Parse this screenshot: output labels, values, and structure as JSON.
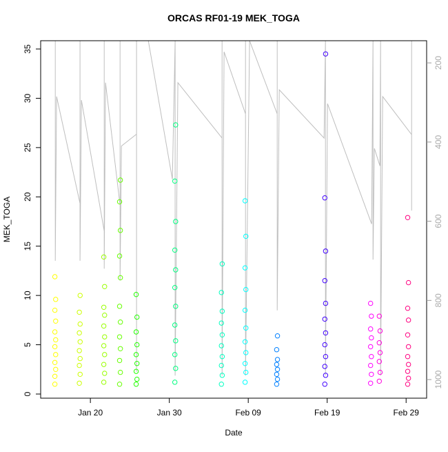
{
  "chart_data": {
    "type": "scatter",
    "title": "ORCAS RF01-19 MEK_TOGA",
    "x_label": "Date",
    "y_label": "MEK_TOGA",
    "xlim": [
      13.7,
      62.6
    ],
    "ylim": [
      -0.42,
      35.84
    ],
    "y2lim": [
      1047,
      144
    ],
    "xticks": [
      {
        "value": 20,
        "label": "Jan 20"
      },
      {
        "value": 30,
        "label": "Jan 30"
      },
      {
        "value": 40,
        "label": "Feb 09"
      },
      {
        "value": 50,
        "label": "Feb 19"
      },
      {
        "value": 60,
        "label": "Feb 29"
      }
    ],
    "yticks": [
      0,
      5,
      10,
      15,
      20,
      25,
      30,
      35
    ],
    "y2ticks": [
      200,
      400,
      600,
      800,
      1000
    ],
    "series": [
      {
        "color": "#FFFF00",
        "x": [
          15.5,
          15.5,
          15.6,
          15.5,
          15.6,
          15.5,
          15.6,
          15.5,
          15.6,
          15.5,
          15.6,
          15.5
        ],
        "values": [
          1,
          1.8,
          2.5,
          3.2,
          4,
          4.8,
          5.5,
          6.3,
          7.4,
          8.5,
          9.6,
          11.9
        ]
      },
      {
        "color": "#CCFF00",
        "x": [
          18.6,
          18.7,
          18.6,
          18.7,
          18.6,
          18.7,
          18.6,
          18.7,
          18.6,
          18.7
        ],
        "values": [
          1.1,
          2,
          2.9,
          3.6,
          4.4,
          5.3,
          6.2,
          7.1,
          8.3,
          10
        ]
      },
      {
        "color": "#99FF00",
        "x": [
          21.7,
          21.8,
          21.7,
          21.8,
          21.7,
          21.8,
          21.7,
          21.8,
          21.7,
          21.8,
          21.7
        ],
        "values": [
          1.2,
          2.1,
          3,
          4,
          4.9,
          5.8,
          6.9,
          8,
          8.8,
          10.9,
          13.9
        ]
      },
      {
        "color": "#66FF00",
        "x": [
          23.7,
          23.8,
          23.7,
          23.8,
          23.7,
          23.8,
          23.7,
          23.8,
          23.7,
          23.8,
          23.7,
          23.8
        ],
        "values": [
          1,
          2.2,
          3.4,
          4.6,
          5.8,
          7.3,
          8.9,
          11.8,
          14,
          16.6,
          19.5,
          21.7
        ]
      },
      {
        "color": "#22FF00",
        "x": [
          25.8,
          25.9,
          25.8,
          25.9,
          25.8,
          25.9,
          25.8,
          25.9,
          25.8
        ],
        "values": [
          1,
          1.5,
          2.3,
          3.1,
          4,
          5,
          6.3,
          7.8,
          10.1
        ]
      },
      {
        "color": "#00FF80",
        "x": [
          30.7,
          30.8,
          30.7,
          30.8,
          30.7,
          30.8,
          30.7,
          30.8,
          30.7,
          30.8,
          30.7,
          30.8
        ],
        "values": [
          1.2,
          2.6,
          4,
          5.4,
          7,
          8.9,
          10.8,
          12.6,
          14.6,
          17.5,
          21.6,
          27.3
        ]
      },
      {
        "color": "#00FFC0",
        "x": [
          36.6,
          36.7,
          36.6,
          36.7,
          36.6,
          36.7,
          36.6,
          36.7,
          36.6,
          36.7
        ],
        "values": [
          1,
          1.9,
          2.9,
          3.8,
          4.9,
          6,
          7.2,
          8.4,
          10.3,
          13.2
        ]
      },
      {
        "color": "#00FFFF",
        "x": [
          39.6,
          39.7,
          39.6,
          39.7,
          39.6,
          39.7,
          39.6,
          39.7,
          39.6,
          39.7,
          39.6
        ],
        "values": [
          1.2,
          2.2,
          3.1,
          4.2,
          5.3,
          6.7,
          8.5,
          10.6,
          12.8,
          16,
          19.6
        ]
      },
      {
        "color": "#0080FF",
        "x": [
          43.6,
          43.7,
          43.6,
          43.7,
          43.6,
          43.7,
          43.6,
          43.7
        ],
        "values": [
          1,
          1.5,
          2,
          2.5,
          3,
          3.5,
          4.5,
          5.9
        ]
      },
      {
        "color": "#4000FF",
        "x": [
          49.7,
          49.8,
          49.7,
          49.8,
          49.7,
          49.8,
          49.7,
          49.8,
          49.7,
          49.8,
          49.7,
          49.8
        ],
        "values": [
          1,
          1.9,
          2.8,
          3.8,
          5,
          6.2,
          7.6,
          9.2,
          11.5,
          14.5,
          19.9,
          34.5
        ]
      },
      {
        "color": "#FF00FF",
        "x": [
          55.5,
          55.6,
          55.5,
          55.6,
          55.5,
          55.6,
          55.5,
          55.6,
          55.5
        ],
        "values": [
          1.1,
          2,
          2.9,
          3.8,
          4.8,
          5.7,
          6.6,
          7.9,
          9.2
        ]
      },
      {
        "color": "#FF00DD",
        "x": [
          56.6,
          56.7,
          56.6,
          56.7,
          56.6,
          56.7,
          56.6
        ],
        "values": [
          1.3,
          2.2,
          3.3,
          4.2,
          5.2,
          6.4,
          7.9
        ]
      },
      {
        "color": "#FF0080",
        "x": [
          60.2,
          60.3,
          60.2,
          60.3,
          60.2,
          60.3,
          60.2,
          60.3,
          60.2,
          60.3,
          60.2
        ],
        "values": [
          1,
          1.6,
          2.3,
          3,
          3.8,
          4.8,
          6,
          7.5,
          8.7,
          11.3,
          17.9
        ]
      }
    ],
    "profile": {
      "color": "#bebebe",
      "axis": "y2",
      "x": [
        15.55,
        15.55,
        15.72,
        18.69,
        18.69,
        18.69,
        18.86,
        21.75,
        21.75,
        21.75,
        21.92,
        23.76,
        23.76,
        23.76,
        23.93,
        25.85,
        25.85,
        25.85,
        25.85,
        27.34,
        30.39,
        30.74,
        30.74,
        31.09,
        36.68,
        36.68,
        36.68,
        36.94,
        39.65,
        39.65,
        39.65,
        40.17,
        43.67,
        43.67,
        43.67,
        43.93,
        49.61,
        49.78,
        49.78,
        50.04,
        55.63,
        55.81,
        55.81,
        55.98,
        56.68,
        56.77,
        56.77,
        57.03,
        60.7,
        60.7,
        60.7
      ],
      "values": [
        144,
        700,
        285,
        555,
        144,
        700,
        294,
        625,
        144,
        720,
        250,
        560,
        144,
        750,
        410,
        380,
        144,
        980,
        144,
        144,
        494,
        144,
        990,
        250,
        390,
        144,
        990,
        172,
        329,
        144,
        990,
        144,
        329,
        144,
        825,
        268,
        390,
        144,
        990,
        303,
        607,
        144,
        697,
        416,
        460,
        144,
        990,
        285,
        381,
        144,
        573
      ]
    }
  }
}
